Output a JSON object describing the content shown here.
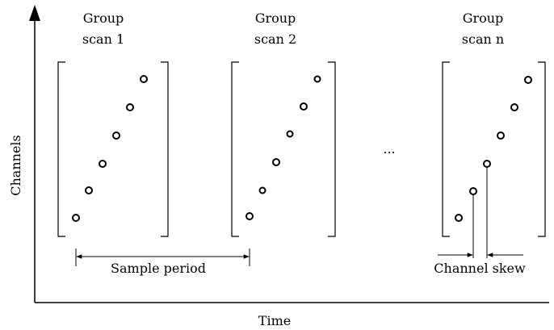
{
  "axes": {
    "x_label": "Time",
    "y_label": "Channels"
  },
  "groups": [
    {
      "title_line1": "Group",
      "title_line2": "scan 1"
    },
    {
      "title_line1": "Group",
      "title_line2": "scan 2"
    },
    {
      "title_line1": "Group",
      "title_line2": "scan n"
    }
  ],
  "ellipsis": "...",
  "annotations": {
    "sample_period": "Sample period",
    "channel_skew": "Channel skew"
  },
  "colors": {
    "ink": "#000000",
    "background": "#ffffff"
  }
}
